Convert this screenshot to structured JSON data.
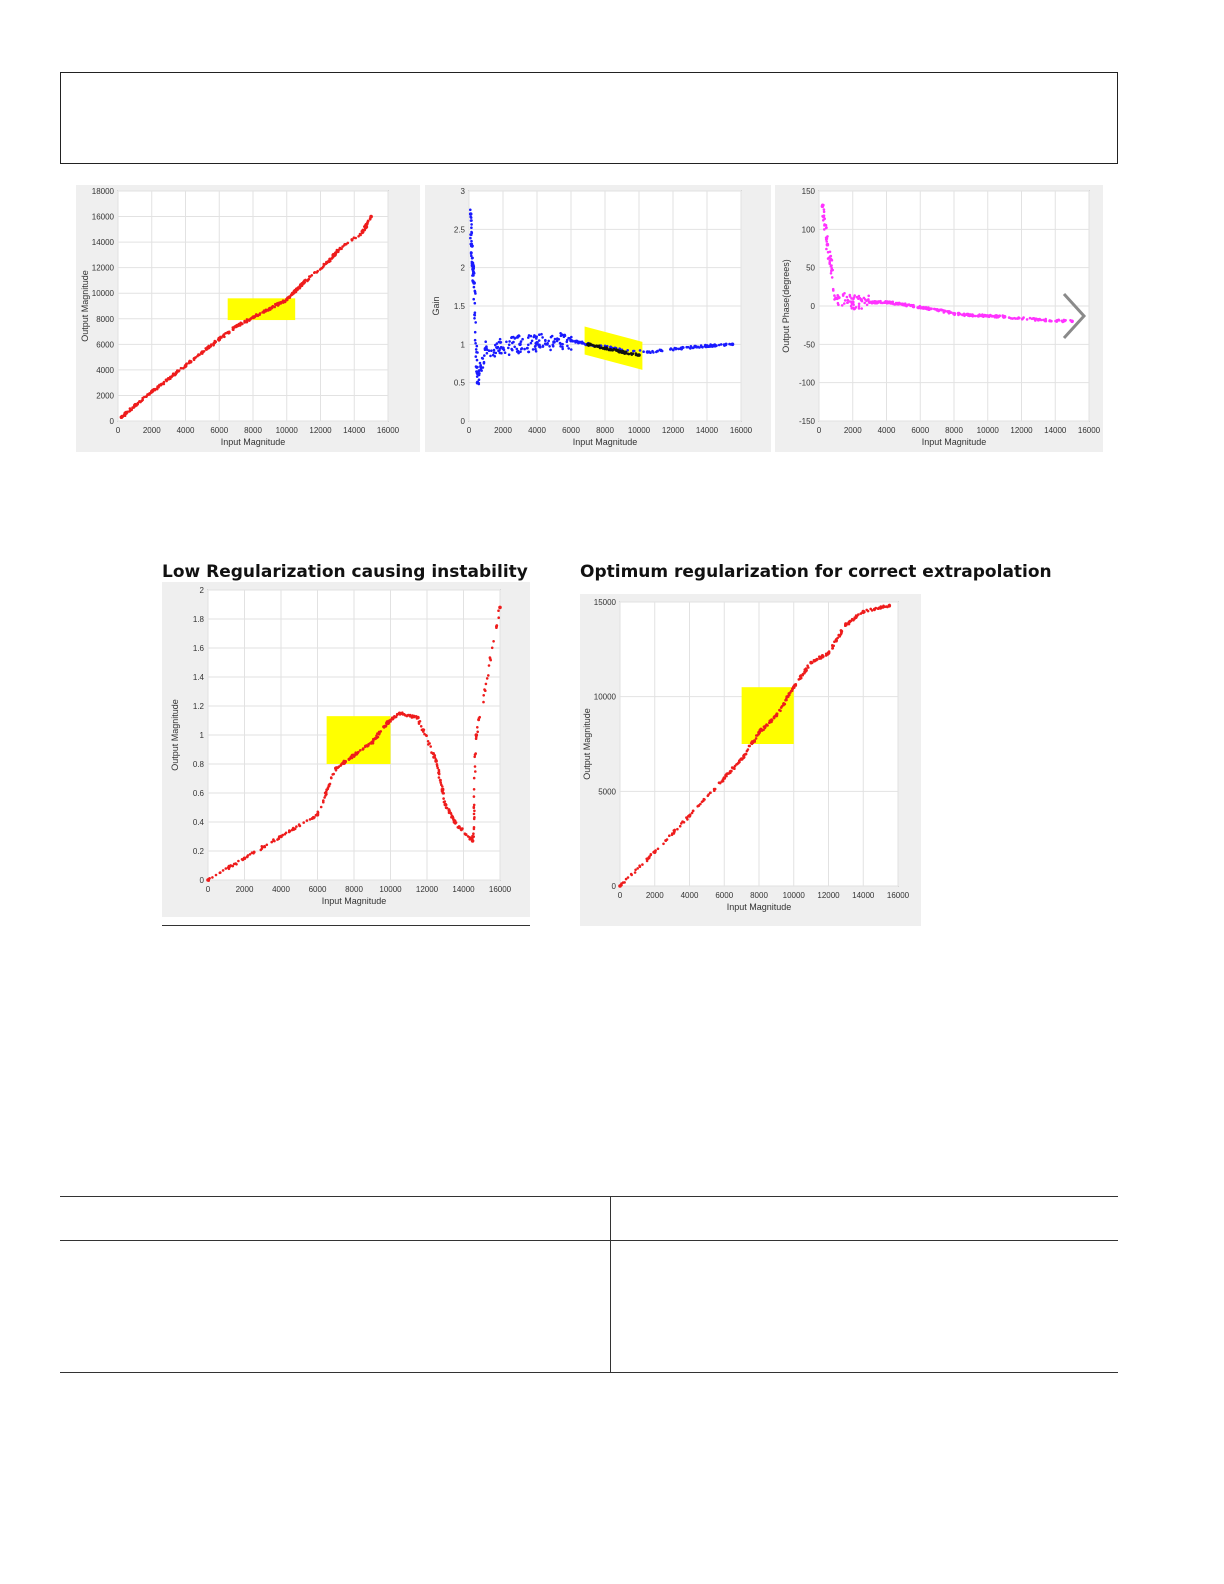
{
  "headings": {
    "low": "Low Regularization causing instability",
    "optimum": "Optimum regularization for correct extrapolation"
  },
  "icons": {
    "next": "chevron-right-icon"
  },
  "colors": {
    "red": "#ee1c1c",
    "blue": "#1a1aff",
    "magenta": "#ff33ff",
    "yellow": "#ffff00",
    "black": "#111111"
  },
  "chart_data": [
    {
      "type": "scatter",
      "xlabel": "Input Magnitude",
      "ylabel": "Output Magnitude",
      "xlim": [
        0,
        16000
      ],
      "ylim": [
        0,
        18000
      ],
      "xticks": [
        "0",
        "2000",
        "4000",
        "6000",
        "8000",
        "10000",
        "12000",
        "14000",
        "16000"
      ],
      "yticks": [
        "0",
        "2000",
        "4000",
        "6000",
        "8000",
        "10000",
        "12000",
        "14000",
        "16000",
        "18000"
      ],
      "grid": true,
      "series": [
        {
          "color": "red",
          "points": [
            [
              200,
              300
            ],
            [
              1000,
              1200
            ],
            [
              2000,
              2300
            ],
            [
              3000,
              3300
            ],
            [
              4000,
              4300
            ],
            [
              5000,
              5400
            ],
            [
              6000,
              6400
            ],
            [
              7000,
              7400
            ],
            [
              8000,
              8100
            ],
            [
              9000,
              8800
            ],
            [
              10000,
              9500
            ],
            [
              10500,
              10200
            ],
            [
              11000,
              10800
            ],
            [
              12500,
              12500
            ],
            [
              13000,
              13300
            ],
            [
              14500,
              14800
            ],
            [
              15000,
              16000
            ]
          ]
        }
      ],
      "highlight": {
        "x": [
          6500,
          10500
        ],
        "y": [
          7900,
          9600
        ],
        "color": "yellow"
      }
    },
    {
      "type": "scatter",
      "xlabel": "Input Magnitude",
      "ylabel": "Gain",
      "xlim": [
        0,
        16000
      ],
      "ylim": [
        0,
        3
      ],
      "xticks": [
        "0",
        "2000",
        "4000",
        "6000",
        "8000",
        "10000",
        "12000",
        "14000",
        "16000"
      ],
      "yticks": [
        "0",
        "0.5",
        "1",
        "1.5",
        "2",
        "2.5",
        "3"
      ],
      "grid": true,
      "series": [
        {
          "color": "blue",
          "points": [
            [
              100,
              2.7
            ],
            [
              200,
              2.05
            ],
            [
              300,
              1.8
            ],
            [
              500,
              0.5
            ],
            [
              1000,
              0.95
            ],
            [
              2000,
              0.95
            ],
            [
              3000,
              1.0
            ],
            [
              4000,
              1.02
            ],
            [
              5000,
              1.03
            ],
            [
              6000,
              1.05
            ],
            [
              7000,
              1.0
            ],
            [
              10500,
              0.9
            ],
            [
              12500,
              0.95
            ],
            [
              14000,
              0.98
            ],
            [
              15500,
              1.0
            ]
          ]
        },
        {
          "color": "black",
          "points": [
            [
              7000,
              1.0
            ],
            [
              8000,
              0.95
            ],
            [
              9000,
              0.9
            ],
            [
              10000,
              0.86
            ]
          ]
        }
      ],
      "highlight_band": {
        "from": [
          6800,
          1.05
        ],
        "to": [
          10200,
          0.85
        ],
        "color": "yellow"
      }
    },
    {
      "type": "scatter",
      "xlabel": "Input Magnitude",
      "ylabel": "Output Phase(degrees)",
      "xlim": [
        0,
        16000
      ],
      "ylim": [
        -150,
        150
      ],
      "xticks": [
        "0",
        "2000",
        "4000",
        "6000",
        "8000",
        "10000",
        "12000",
        "14000",
        "16000"
      ],
      "yticks": [
        "-150",
        "-100",
        "-50",
        "0",
        "50",
        "100",
        "150"
      ],
      "grid": true,
      "series": [
        {
          "color": "magenta",
          "points": [
            [
              200,
              130
            ],
            [
              500,
              80
            ],
            [
              1000,
              10
            ],
            [
              2000,
              5
            ],
            [
              3000,
              5
            ],
            [
              4000,
              5
            ],
            [
              5000,
              2
            ],
            [
              6000,
              -2
            ],
            [
              7000,
              -5
            ],
            [
              8000,
              -10
            ],
            [
              9000,
              -12
            ],
            [
              10000,
              -13
            ],
            [
              11000,
              -14
            ],
            [
              13000,
              -18
            ],
            [
              15000,
              -20
            ]
          ]
        }
      ]
    },
    {
      "type": "scatter",
      "xlabel": "Input Magnitude",
      "ylabel": "Output Magnitude",
      "xlim": [
        0,
        16000
      ],
      "ylim": [
        0,
        2
      ],
      "xticks": [
        "0",
        "2000",
        "4000",
        "6000",
        "8000",
        "10000",
        "12000",
        "14000",
        "16000"
      ],
      "yticks": [
        "0",
        "0.2",
        "0.4",
        "0.6",
        "0.8",
        "1",
        "1.2",
        "1.4",
        "1.6",
        "1.8",
        "2"
      ],
      "grid": true,
      "series": [
        {
          "color": "red",
          "points": [
            [
              0,
              0
            ],
            [
              2000,
              0.15
            ],
            [
              4000,
              0.3
            ],
            [
              6000,
              0.45
            ],
            [
              7000,
              0.77
            ],
            [
              8000,
              0.86
            ],
            [
              9000,
              0.95
            ],
            [
              9800,
              1.08
            ],
            [
              10500,
              1.15
            ],
            [
              11500,
              1.12
            ],
            [
              12500,
              0.82
            ],
            [
              13000,
              0.52
            ],
            [
              13500,
              0.4
            ],
            [
              14500,
              0.27
            ],
            [
              14700,
              1.0
            ],
            [
              16000,
              1.88
            ]
          ]
        }
      ],
      "highlight": {
        "x": [
          6500,
          10000
        ],
        "y": [
          0.8,
          1.13
        ],
        "color": "yellow"
      }
    },
    {
      "type": "scatter",
      "xlabel": "Input Magnitude",
      "ylabel": "Output Magnitude",
      "xlim": [
        0,
        16000
      ],
      "ylim": [
        0,
        15000
      ],
      "xticks": [
        "0",
        "2000",
        "4000",
        "6000",
        "8000",
        "10000",
        "12000",
        "14000",
        "16000"
      ],
      "yticks": [
        "0",
        "5000",
        "10000",
        "15000"
      ],
      "grid": true,
      "series": [
        {
          "color": "red",
          "points": [
            [
              0,
              0
            ],
            [
              2000,
              1800
            ],
            [
              4000,
              3700
            ],
            [
              6000,
              5700
            ],
            [
              7000,
              6700
            ],
            [
              8000,
              8100
            ],
            [
              9000,
              9000
            ],
            [
              10000,
              10500
            ],
            [
              11000,
              11800
            ],
            [
              12000,
              12300
            ],
            [
              13000,
              13800
            ],
            [
              14000,
              14500
            ],
            [
              15500,
              14800
            ]
          ]
        }
      ],
      "highlight": {
        "x": [
          7000,
          10000
        ],
        "y": [
          7500,
          10500
        ],
        "color": "yellow"
      }
    }
  ]
}
